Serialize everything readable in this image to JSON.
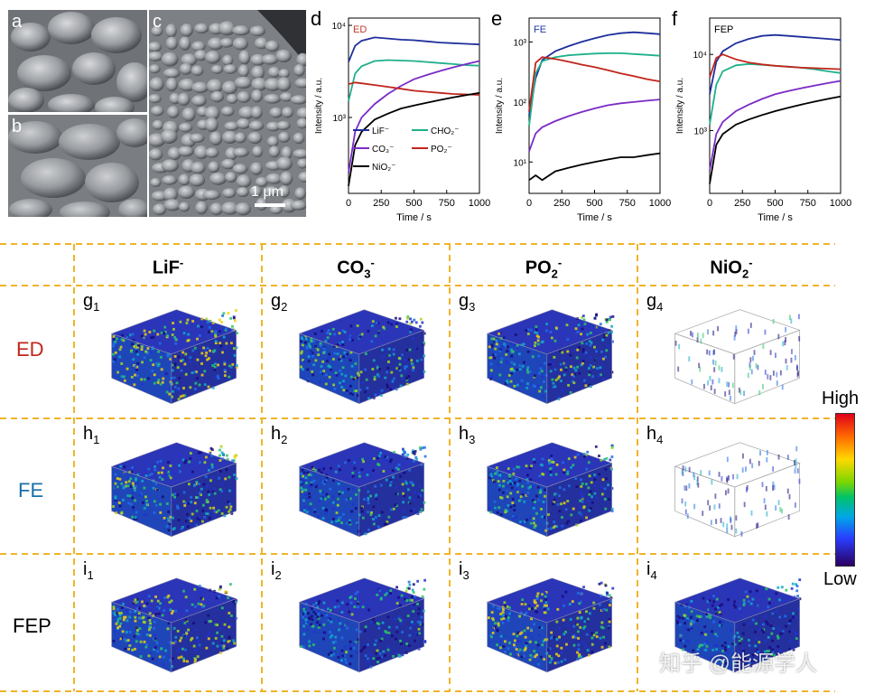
{
  "sem": {
    "labels": [
      "a",
      "b",
      "c"
    ],
    "scale_bar": "1 μm"
  },
  "chart_data": [
    {
      "panel": "d",
      "type": "line",
      "title": "ED",
      "title_color": "#c0392b",
      "xlabel": "Time / s",
      "ylabel": "Intensity / a.u.",
      "xlim": [
        0,
        1000
      ],
      "ylim": [
        150,
        12000
      ],
      "log_y": true,
      "x_ticks": [
        "0",
        "250",
        "500",
        "750",
        "1000"
      ],
      "y_ticks": [
        {
          "value": 1000,
          "label": "10³"
        },
        {
          "value": 10000,
          "label": "10⁴"
        }
      ],
      "legend": [
        "LiF⁻",
        "CHO₂⁻",
        "CO₃⁻",
        "PO₂⁻",
        "NiO₂⁻"
      ],
      "series": [
        {
          "name": "LiF⁻",
          "color": "#1f2f9c",
          "x": [
            0,
            50,
            100,
            200,
            300,
            400,
            500,
            600,
            700,
            800,
            900,
            1000
          ],
          "y": [
            4000,
            6000,
            6800,
            7400,
            7200,
            7000,
            6900,
            6700,
            6500,
            6400,
            6300,
            6200
          ]
        },
        {
          "name": "CHO₂⁻",
          "color": "#1fb08c",
          "x": [
            0,
            50,
            100,
            200,
            300,
            400,
            500,
            600,
            700,
            800,
            900,
            1000
          ],
          "y": [
            1500,
            3000,
            3600,
            4100,
            4200,
            4150,
            4100,
            4000,
            3900,
            3800,
            3700,
            3650
          ]
        },
        {
          "name": "CO₃⁻",
          "color": "#7b2bc5",
          "x": [
            0,
            50,
            100,
            200,
            300,
            400,
            500,
            600,
            700,
            800,
            900,
            1000
          ],
          "y": [
            250,
            700,
            1000,
            1400,
            1800,
            2200,
            2600,
            2900,
            3200,
            3500,
            3800,
            4100
          ]
        },
        {
          "name": "PO₂⁻",
          "color": "#c0251c",
          "x": [
            0,
            50,
            100,
            200,
            300,
            400,
            500,
            600,
            700,
            800,
            900,
            1000
          ],
          "y": [
            2300,
            2400,
            2350,
            2250,
            2150,
            2050,
            1950,
            1900,
            1850,
            1800,
            1780,
            1760
          ]
        },
        {
          "name": "NiO₂⁻",
          "color": "#000000",
          "x": [
            0,
            50,
            100,
            200,
            300,
            400,
            500,
            600,
            700,
            800,
            900,
            1000
          ],
          "y": [
            180,
            500,
            700,
            950,
            1100,
            1250,
            1350,
            1450,
            1550,
            1650,
            1750,
            1850
          ]
        }
      ]
    },
    {
      "panel": "e",
      "type": "line",
      "title": "FE",
      "title_color": "#1f3aa6",
      "xlabel": "Time / s",
      "ylabel": "Intensity / a.u.",
      "xlim": [
        0,
        1000
      ],
      "ylim": [
        3,
        2500
      ],
      "log_y": true,
      "x_ticks": [
        "0",
        "250",
        "500",
        "750",
        "1000"
      ],
      "y_ticks": [
        {
          "value": 10,
          "label": "10¹"
        },
        {
          "value": 100,
          "label": "10²"
        },
        {
          "value": 1000,
          "label": "10³"
        }
      ],
      "series": [
        {
          "name": "LiF⁻",
          "color": "#1f2f9c",
          "x": [
            0,
            50,
            100,
            200,
            300,
            400,
            500,
            600,
            700,
            800,
            900,
            1000
          ],
          "y": [
            60,
            250,
            500,
            700,
            850,
            1000,
            1150,
            1300,
            1400,
            1450,
            1400,
            1350
          ]
        },
        {
          "name": "CHO₂⁻",
          "color": "#1fb08c",
          "x": [
            0,
            50,
            100,
            200,
            300,
            400,
            500,
            600,
            700,
            800,
            900,
            1000
          ],
          "y": [
            40,
            300,
            480,
            560,
            600,
            620,
            640,
            650,
            650,
            630,
            610,
            590
          ]
        },
        {
          "name": "CO₃⁻",
          "color": "#7b2bc5",
          "x": [
            0,
            50,
            100,
            200,
            300,
            400,
            500,
            600,
            700,
            800,
            900,
            1000
          ],
          "y": [
            15,
            30,
            38,
            48,
            58,
            68,
            78,
            88,
            95,
            100,
            105,
            110
          ]
        },
        {
          "name": "PO₂⁻",
          "color": "#c0251c",
          "x": [
            0,
            50,
            100,
            200,
            300,
            400,
            500,
            600,
            700,
            800,
            900,
            1000
          ],
          "y": [
            70,
            450,
            560,
            520,
            470,
            420,
            380,
            340,
            300,
            270,
            240,
            220
          ]
        },
        {
          "name": "NiO₂⁻",
          "color": "#000000",
          "x": [
            0,
            50,
            100,
            200,
            300,
            400,
            500,
            600,
            700,
            800,
            900,
            1000
          ],
          "y": [
            5,
            6,
            5,
            7,
            8,
            9,
            10,
            11,
            12,
            12,
            13,
            14
          ]
        }
      ]
    },
    {
      "panel": "f",
      "type": "line",
      "title": "FEP",
      "title_color": "#000000",
      "xlabel": "Time / s",
      "ylabel": "Intensity / a.u.",
      "xlim": [
        0,
        1000
      ],
      "ylim": [
        150,
        30000
      ],
      "log_y": true,
      "x_ticks": [
        "0",
        "250",
        "500",
        "750",
        "1000"
      ],
      "y_ticks": [
        {
          "value": 1000,
          "label": "10³"
        },
        {
          "value": 10000,
          "label": "10⁴"
        }
      ],
      "series": [
        {
          "name": "LiF⁻",
          "color": "#1f2f9c",
          "x": [
            0,
            50,
            100,
            200,
            300,
            400,
            500,
            600,
            700,
            800,
            900,
            1000
          ],
          "y": [
            3000,
            8000,
            11000,
            14000,
            16000,
            17500,
            18000,
            17500,
            17000,
            16500,
            16000,
            15500
          ]
        },
        {
          "name": "CHO₂⁻",
          "color": "#1fb08c",
          "x": [
            0,
            50,
            100,
            200,
            300,
            400,
            500,
            600,
            700,
            800,
            900,
            1000
          ],
          "y": [
            1200,
            4000,
            6000,
            7200,
            7500,
            7300,
            7100,
            6900,
            6700,
            6400,
            6000,
            5700
          ]
        },
        {
          "name": "CO₃⁻",
          "color": "#7b2bc5",
          "x": [
            0,
            50,
            100,
            200,
            300,
            400,
            500,
            600,
            700,
            800,
            900,
            1000
          ],
          "y": [
            300,
            900,
            1300,
            1800,
            2200,
            2600,
            3000,
            3300,
            3600,
            3900,
            4200,
            4500
          ]
        },
        {
          "name": "PO₂⁻",
          "color": "#c0251c",
          "x": [
            0,
            50,
            100,
            200,
            300,
            400,
            500,
            600,
            700,
            800,
            900,
            1000
          ],
          "y": [
            5000,
            9000,
            10000,
            8600,
            7800,
            7400,
            7100,
            6900,
            6700,
            6600,
            6500,
            6400
          ]
        },
        {
          "name": "NiO₂⁻",
          "color": "#000000",
          "x": [
            0,
            50,
            100,
            200,
            300,
            400,
            500,
            600,
            700,
            800,
            900,
            1000
          ],
          "y": [
            200,
            650,
            900,
            1200,
            1400,
            1600,
            1800,
            2000,
            2200,
            2400,
            2600,
            2800
          ]
        }
      ]
    }
  ],
  "grid": {
    "columns": [
      {
        "base": "LiF",
        "sub": "",
        "sup": "-"
      },
      {
        "base": "CO",
        "sub": "3",
        "sup": "-"
      },
      {
        "base": "PO",
        "sub": "2",
        "sup": "-"
      },
      {
        "base": "NiO",
        "sub": "2",
        "sup": "-"
      }
    ],
    "rows": [
      {
        "name": "ED",
        "color": "#c0251c",
        "letter": "g"
      },
      {
        "name": "FE",
        "color": "#1a6fa8",
        "letter": "h"
      },
      {
        "name": "FEP",
        "color": "#000000",
        "letter": "i"
      }
    ],
    "cells": [
      [
        "g1",
        "g2",
        "g3",
        "g4"
      ],
      [
        "h1",
        "h2",
        "h3",
        "h4"
      ],
      [
        "i1",
        "i2",
        "i3",
        "i4"
      ]
    ],
    "intensity": [
      [
        0.72,
        0.35,
        0.45,
        0.18
      ],
      [
        0.5,
        0.3,
        0.42,
        0.1
      ],
      [
        0.55,
        0.25,
        0.62,
        0.28
      ]
    ]
  },
  "colorbar": {
    "high": "High",
    "low": "Low"
  },
  "watermark": "知乎 @能源学人"
}
